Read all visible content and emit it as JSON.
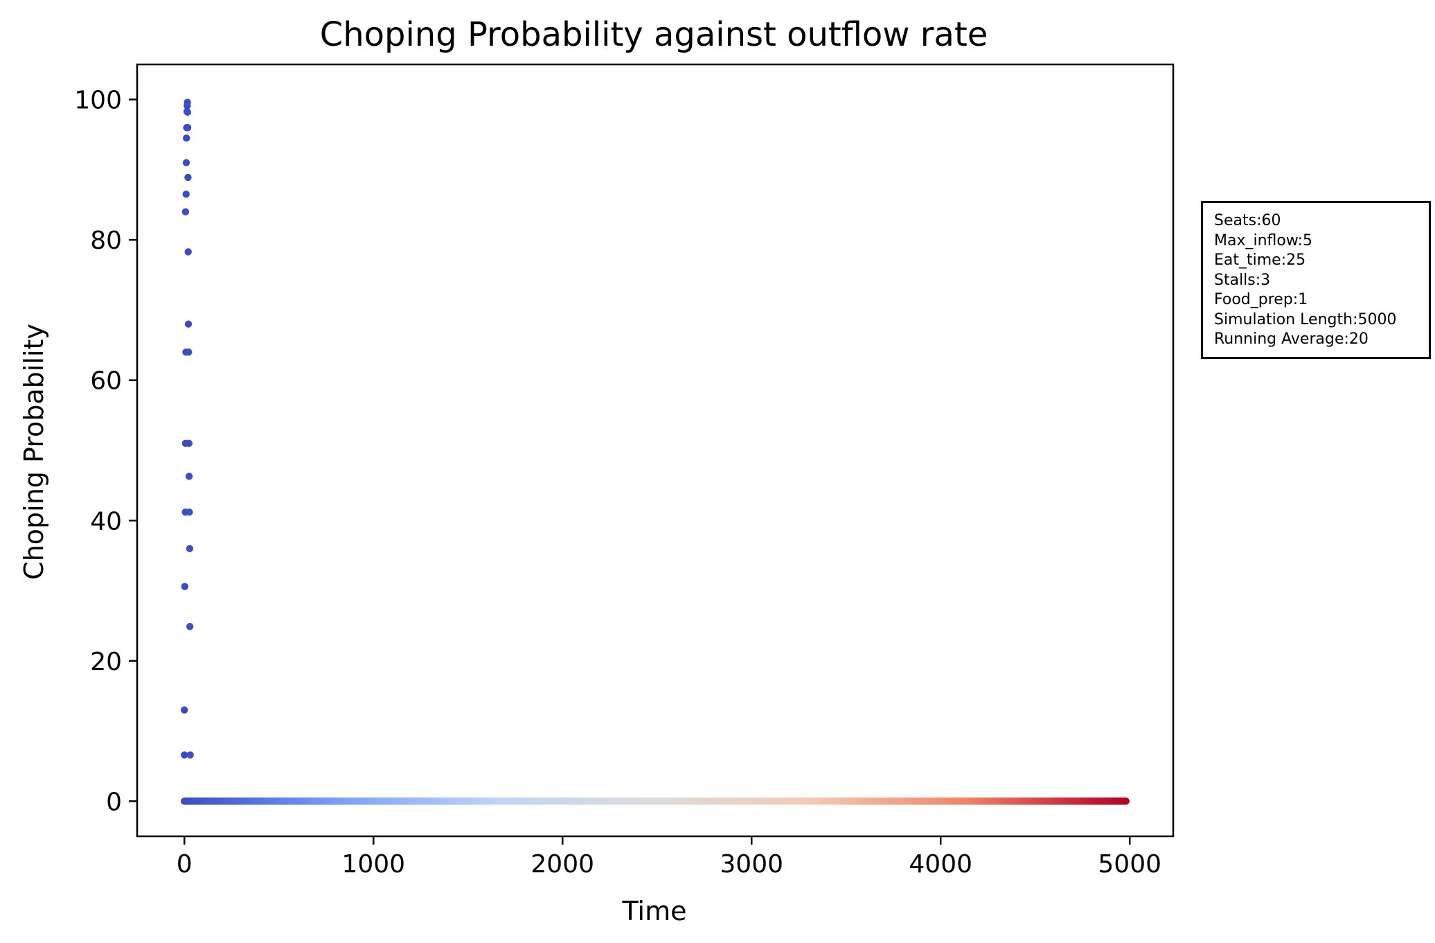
{
  "chart_data": {
    "type": "scatter",
    "title": "Choping Probability against outflow rate",
    "xlabel": "Time",
    "ylabel": "Choping Probability",
    "xlim": [
      -250,
      5230
    ],
    "ylim": [
      -5,
      105
    ],
    "xticks": [
      0,
      1000,
      2000,
      3000,
      4000,
      5000
    ],
    "yticks": [
      0,
      20,
      40,
      60,
      80,
      100
    ],
    "grid": false,
    "colormap": "coolwarm",
    "colormap_stops": [
      "#3b4cc0",
      "#7b9ff9",
      "#c0d4f5",
      "#dddcdc",
      "#f2cbb7",
      "#ee8468",
      "#b40426"
    ],
    "zero_series": {
      "x_start": 0,
      "x_end": 4980,
      "y": 0
    },
    "early_points": [
      {
        "x": 0,
        "y": 13
      },
      {
        "x": 0,
        "y": 6.6
      },
      {
        "x": 2,
        "y": 30.6
      },
      {
        "x": 5,
        "y": 41.2
      },
      {
        "x": 6,
        "y": 51
      },
      {
        "x": 6,
        "y": 84
      },
      {
        "x": 8,
        "y": 64
      },
      {
        "x": 9,
        "y": 86.5
      },
      {
        "x": 10,
        "y": 91
      },
      {
        "x": 11,
        "y": 94.5
      },
      {
        "x": 12,
        "y": 96
      },
      {
        "x": 14,
        "y": 98.3
      },
      {
        "x": 15,
        "y": 99.1
      },
      {
        "x": 16,
        "y": 99.6
      },
      {
        "x": 17,
        "y": 98.2
      },
      {
        "x": 18,
        "y": 96
      },
      {
        "x": 19,
        "y": 88.9
      },
      {
        "x": 20,
        "y": 78.3
      },
      {
        "x": 21,
        "y": 68
      },
      {
        "x": 22,
        "y": 64
      },
      {
        "x": 24,
        "y": 51
      },
      {
        "x": 25,
        "y": 46.3
      },
      {
        "x": 26,
        "y": 41.2
      },
      {
        "x": 28,
        "y": 36
      },
      {
        "x": 29,
        "y": 24.9
      },
      {
        "x": 31,
        "y": 6.6
      }
    ]
  },
  "info_box": {
    "lines": [
      "Seats:60",
      "Max_inflow:5",
      "Eat_time:25",
      "Stalls:3",
      "Food_prep:1",
      "Simulation Length:5000",
      "Running Average:20"
    ]
  }
}
